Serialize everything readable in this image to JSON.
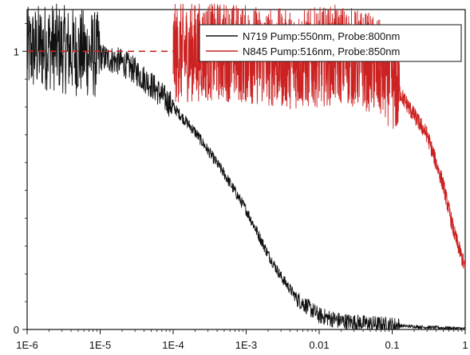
{
  "chart_data": {
    "type": "line",
    "title": "",
    "xlabel": "",
    "ylabel": "",
    "x_scale": "log",
    "xlim": [
      1e-06,
      1
    ],
    "ylim": [
      0,
      1.15
    ],
    "x_ticks": [
      {
        "value": 1e-06,
        "label": "1E-6"
      },
      {
        "value": 1e-05,
        "label": "1E-5"
      },
      {
        "value": 0.0001,
        "label": "1E-4"
      },
      {
        "value": 0.001,
        "label": "1E-3"
      },
      {
        "value": 0.01,
        "label": "0.01"
      },
      {
        "value": 0.1,
        "label": "0.1"
      },
      {
        "value": 1,
        "label": "1"
      }
    ],
    "y_ticks": [
      {
        "value": 0,
        "label": "0"
      },
      {
        "value": 1,
        "label": "1"
      }
    ],
    "grid": false,
    "legend_position": "top-right",
    "series": [
      {
        "name": "N719 Pump:550nm, Probe:800nm",
        "color": "#111111",
        "x": [
          1e-06,
          2e-06,
          4e-06,
          8e-06,
          1e-05,
          2e-05,
          3e-05,
          5e-05,
          0.0001,
          0.0002,
          0.0005,
          0.001,
          0.002,
          0.003,
          0.005,
          0.01,
          0.02,
          0.05,
          0.1,
          0.3,
          1
        ],
        "y": [
          1.0,
          1.02,
          1.0,
          0.99,
          0.98,
          0.96,
          0.93,
          0.88,
          0.8,
          0.71,
          0.56,
          0.43,
          0.27,
          0.19,
          0.11,
          0.05,
          0.03,
          0.02,
          0.015,
          0.008,
          0.003
        ]
      },
      {
        "name": "N845 Pump:516nm, Probe:850nm",
        "color": "#cc2222",
        "x": [
          1e-06,
          1e-05,
          0.0001,
          0.0002,
          0.0005,
          0.001,
          0.002,
          0.005,
          0.01,
          0.02,
          0.05,
          0.1,
          0.15,
          0.2,
          0.3,
          0.5,
          0.7,
          1
        ],
        "y": [
          1.0,
          0.995,
          0.99,
          1.0,
          1.0,
          0.99,
          0.98,
          0.97,
          0.98,
          0.99,
          0.96,
          0.9,
          0.82,
          0.77,
          0.7,
          0.52,
          0.35,
          0.22
        ]
      }
    ]
  }
}
